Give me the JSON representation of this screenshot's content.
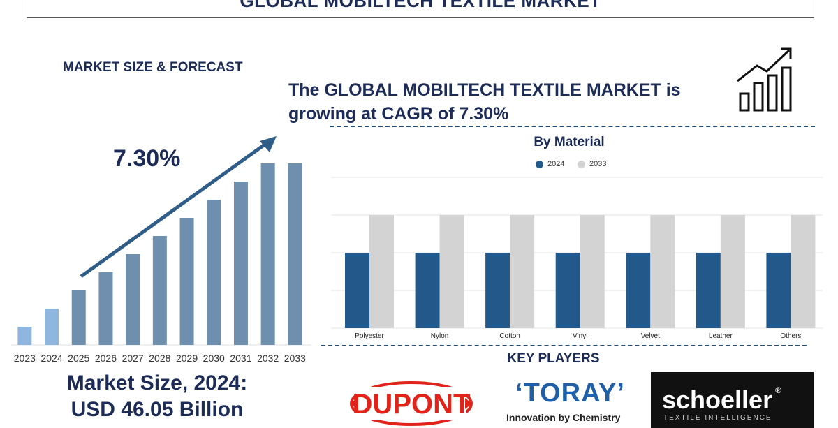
{
  "header": {
    "title": "GLOBAL MOBILTECH TEXTILE MARKET"
  },
  "left": {
    "heading": "MARKET SIZE & FORECAST",
    "cagr_label": "7.30%",
    "market_size_line1": "Market Size, 2024:",
    "market_size_line2": "USD 46.05 Billion"
  },
  "headline": "The GLOBAL MOBILTECH TEXTILE MARKET is growing at CAGR of 7.30%",
  "key_players": {
    "title": "KEY PLAYERS",
    "dupont": "DUPONT",
    "toray": "TORAY",
    "toray_tagline": "Innovation by Chemistry",
    "schoeller": "schoeller",
    "schoeller_tagline": "TEXTILE INTELLIGENCE"
  },
  "colors": {
    "navy": "#1d2b57",
    "bar_2024": "#22588a",
    "bar_2033": "#d3d3d3",
    "forecast_bar": "#6f8fae",
    "first_bars": "#8fb6de",
    "dupont_red": "#e2231a",
    "toray_blue": "#1f5fa8"
  },
  "chart_data": [
    {
      "type": "bar",
      "categories": [
        "2023",
        "2024",
        "2025",
        "2026",
        "2027",
        "2028",
        "2029",
        "2030",
        "2031",
        "2032",
        "2033"
      ],
      "values": [
        10,
        20,
        30,
        40,
        50,
        60,
        70,
        80,
        90,
        100,
        100
      ],
      "ylim": [
        0,
        100
      ],
      "grid": false
    },
    {
      "type": "bar",
      "title": "By Material",
      "categories": [
        "Polyester",
        "Nylon",
        "Cotton",
        "Vinyl",
        "Velvet",
        "Leather",
        "Others"
      ],
      "series": [
        {
          "name": "2024",
          "values": [
            2,
            2,
            2,
            2,
            2,
            2,
            2
          ]
        },
        {
          "name": "2033",
          "values": [
            3,
            3,
            3,
            3,
            3,
            3,
            3
          ]
        }
      ],
      "ylim": [
        0,
        4
      ],
      "grid": true,
      "legend": "top-center"
    }
  ]
}
